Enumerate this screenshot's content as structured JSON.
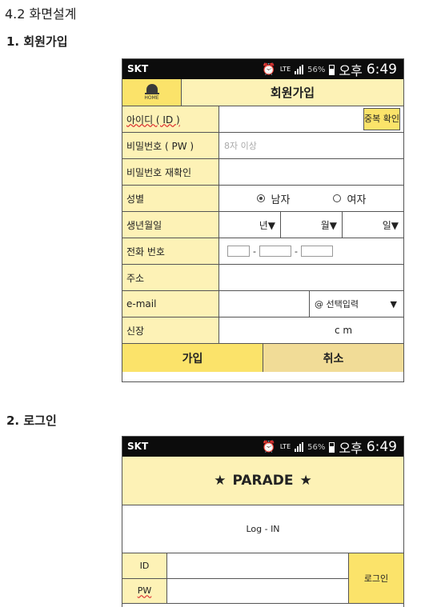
{
  "document": {
    "section_title": "4.2  화면설계",
    "section1_title": "1. 회원가입",
    "section2_title": "2. 로그인"
  },
  "statusbar": {
    "carrier": "SKT",
    "network": "LTE",
    "battery": "56%",
    "ampm": "오후",
    "time": "6:49"
  },
  "signup": {
    "home_label": "HOME",
    "title": "회원가입",
    "fields": {
      "id_label": "아이디 ( ID )",
      "dup_check_label": "중복 확인",
      "pw_label": "비밀번호 ( PW )",
      "pw_placeholder": "8자 이상",
      "pw_confirm_label": "비밀번호 재확인",
      "gender_label": "성별",
      "gender_male": "남자",
      "gender_female": "여자",
      "gender_selected": "남자",
      "birth_label": "생년월일",
      "birth_year": "년▼",
      "birth_month": "월▼",
      "birth_day": "일▼",
      "phone_label": "전화 번호",
      "phone_sep": "-",
      "address_label": "주소",
      "email_label": "e-mail",
      "email_domain": "@ 선택입력",
      "email_arrow": "▼",
      "height_label": "신장",
      "height_unit": "c m"
    },
    "join_button": "가입",
    "cancel_button": "취소"
  },
  "login": {
    "brand_star": "★",
    "brand_name": "PARADE",
    "caption": "Log - IN",
    "id_label": "ID",
    "pw_label": "PW",
    "login_button": "로그인"
  },
  "colors": {
    "accent_yellow": "#fbe36a",
    "label_bg": "#fdf2b6",
    "cancel_bg": "#f1dc97",
    "statusbar_bg": "#0c0c0c"
  }
}
